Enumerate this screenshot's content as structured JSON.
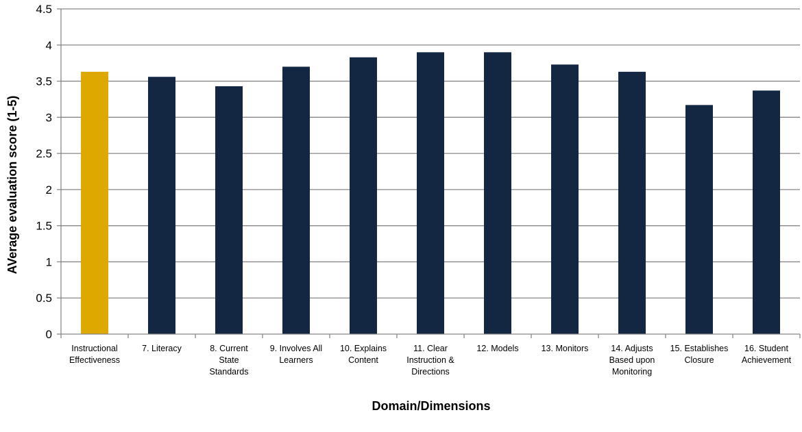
{
  "chart_data": {
    "type": "bar",
    "categories": [
      [
        "Instructional",
        "Effectiveness"
      ],
      [
        "7. Literacy"
      ],
      [
        "8. Current",
        "State",
        "Standards"
      ],
      [
        "9. Involves All",
        "Learners"
      ],
      [
        "10. Explains",
        "Content"
      ],
      [
        "11. Clear",
        "Instruction &",
        "Directions"
      ],
      [
        "12. Models"
      ],
      [
        "13. Monitors"
      ],
      [
        "14. Adjusts",
        "Based upon",
        "Monitoring"
      ],
      [
        "15. Establishes",
        "Closure"
      ],
      [
        "16. Student",
        "Achievement"
      ]
    ],
    "values": [
      3.63,
      3.56,
      3.43,
      3.7,
      3.83,
      3.9,
      3.9,
      3.73,
      3.63,
      3.17,
      3.37
    ],
    "bar_colors": [
      "#DDA900",
      "#132642",
      "#132642",
      "#132642",
      "#132642",
      "#132642",
      "#132642",
      "#132642",
      "#132642",
      "#132642",
      "#132642"
    ],
    "xlabel": "Domain/Dimensions",
    "ylabel": "AVerage evaluation score (1-5)",
    "ylim": [
      0,
      4.5
    ],
    "yticks": [
      "0",
      "0.5",
      "1",
      "1.5",
      "2",
      "2.5",
      "3",
      "3.5",
      "4",
      "4.5"
    ],
    "grid": true,
    "gridline_color": "#878787"
  }
}
